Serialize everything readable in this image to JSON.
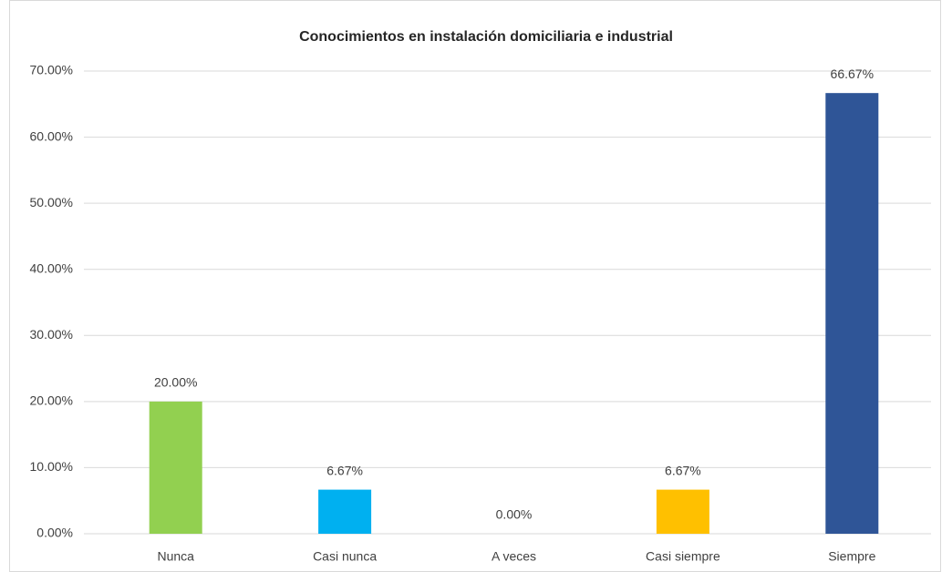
{
  "chart_data": {
    "type": "bar",
    "title": "Conocimientos en instalación domiciliaria e industrial",
    "categories": [
      "Nunca",
      "Casi nunca",
      "A veces",
      "Casi siempre",
      "Siempre"
    ],
    "values": [
      20,
      6.67,
      0,
      6.67,
      66.67
    ],
    "value_labels": [
      "20.00%",
      "6.67%",
      "0.00%",
      "6.67%",
      "66.67%"
    ],
    "colors": [
      "#92d050",
      "#00b0f0",
      "#a5a5a5",
      "#ffc000",
      "#2f5597"
    ],
    "ylim": [
      0,
      70
    ],
    "yticks": [
      {
        "value": 0,
        "label": "0.00%"
      },
      {
        "value": 10,
        "label": "10.00%"
      },
      {
        "value": 20,
        "label": "20.00%"
      },
      {
        "value": 30,
        "label": "30.00%"
      },
      {
        "value": 40,
        "label": "40.00%"
      },
      {
        "value": 50,
        "label": "50.00%"
      },
      {
        "value": 60,
        "label": "60.00%"
      },
      {
        "value": 70,
        "label": "70.00%"
      }
    ],
    "grid": true
  }
}
